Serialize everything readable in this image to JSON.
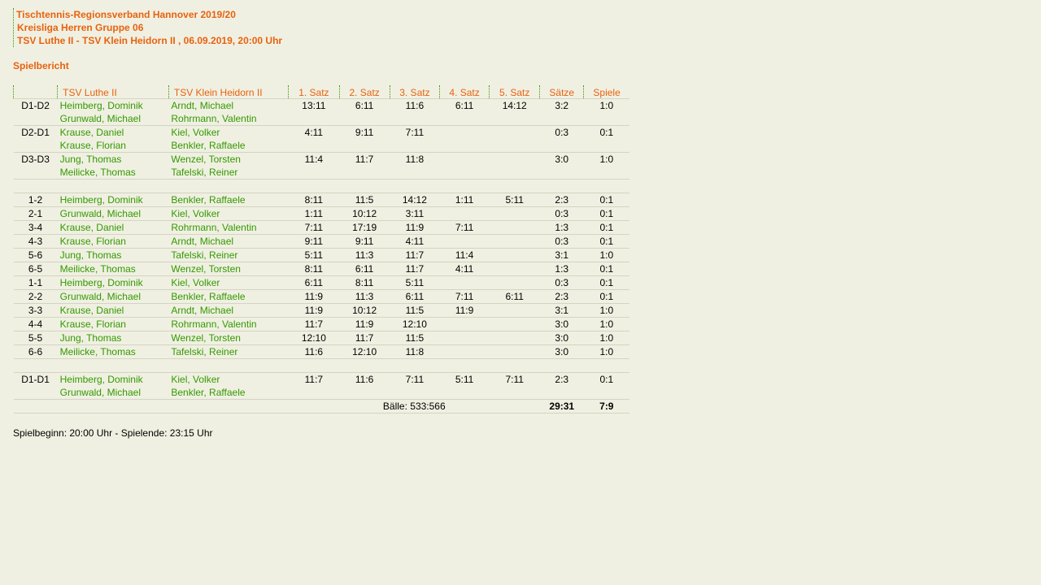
{
  "header": {
    "line1": "Tischtennis-Regionsverband Hannover 2019/20",
    "line2": "Kreisliga Herren Gruppe 06",
    "line3": "TSV Luthe II - TSV Klein Heidorn II , 06.09.2019, 20:00 Uhr"
  },
  "section_title": "Spielbericht",
  "columns": [
    "",
    "TSV Luthe II",
    "TSV Klein Heidorn II",
    "1. Satz",
    "2. Satz",
    "3. Satz",
    "4. Satz",
    "5. Satz",
    "Sätze",
    "Spiele"
  ],
  "groups": [
    [
      {
        "pos": "D1-D2",
        "home": [
          "Heimberg, Dominik",
          "Grunwald, Michael"
        ],
        "away": [
          "Arndt, Michael",
          "Rohrmann, Valentin"
        ],
        "sets": [
          "13:11",
          "6:11",
          "11:6",
          "6:11",
          "14:12"
        ],
        "saetze": "3:2",
        "spiele": "1:0"
      },
      {
        "pos": "D2-D1",
        "home": [
          "Krause, Daniel",
          "Krause, Florian"
        ],
        "away": [
          "Kiel, Volker",
          "Benkler, Raffaele"
        ],
        "sets": [
          "4:11",
          "9:11",
          "7:11",
          "",
          ""
        ],
        "saetze": "0:3",
        "spiele": "0:1"
      },
      {
        "pos": "D3-D3",
        "home": [
          "Jung, Thomas",
          "Meilicke, Thomas"
        ],
        "away": [
          "Wenzel, Torsten",
          "Tafelski, Reiner"
        ],
        "sets": [
          "11:4",
          "11:7",
          "11:8",
          "",
          ""
        ],
        "saetze": "3:0",
        "spiele": "1:0"
      }
    ],
    [
      {
        "pos": "1-2",
        "home": [
          "Heimberg, Dominik"
        ],
        "away": [
          "Benkler, Raffaele"
        ],
        "sets": [
          "8:11",
          "11:5",
          "14:12",
          "1:11",
          "5:11"
        ],
        "saetze": "2:3",
        "spiele": "0:1"
      },
      {
        "pos": "2-1",
        "home": [
          "Grunwald, Michael"
        ],
        "away": [
          "Kiel, Volker"
        ],
        "sets": [
          "1:11",
          "10:12",
          "3:11",
          "",
          ""
        ],
        "saetze": "0:3",
        "spiele": "0:1"
      },
      {
        "pos": "3-4",
        "home": [
          "Krause, Daniel"
        ],
        "away": [
          "Rohrmann, Valentin"
        ],
        "sets": [
          "7:11",
          "17:19",
          "11:9",
          "7:11",
          ""
        ],
        "saetze": "1:3",
        "spiele": "0:1"
      },
      {
        "pos": "4-3",
        "home": [
          "Krause, Florian"
        ],
        "away": [
          "Arndt, Michael"
        ],
        "sets": [
          "9:11",
          "9:11",
          "4:11",
          "",
          ""
        ],
        "saetze": "0:3",
        "spiele": "0:1"
      },
      {
        "pos": "5-6",
        "home": [
          "Jung, Thomas"
        ],
        "away": [
          "Tafelski, Reiner"
        ],
        "sets": [
          "5:11",
          "11:3",
          "11:7",
          "11:4",
          ""
        ],
        "saetze": "3:1",
        "spiele": "1:0"
      },
      {
        "pos": "6-5",
        "home": [
          "Meilicke, Thomas"
        ],
        "away": [
          "Wenzel, Torsten"
        ],
        "sets": [
          "8:11",
          "6:11",
          "11:7",
          "4:11",
          ""
        ],
        "saetze": "1:3",
        "spiele": "0:1"
      },
      {
        "pos": "1-1",
        "home": [
          "Heimberg, Dominik"
        ],
        "away": [
          "Kiel, Volker"
        ],
        "sets": [
          "6:11",
          "8:11",
          "5:11",
          "",
          ""
        ],
        "saetze": "0:3",
        "spiele": "0:1"
      },
      {
        "pos": "2-2",
        "home": [
          "Grunwald, Michael"
        ],
        "away": [
          "Benkler, Raffaele"
        ],
        "sets": [
          "11:9",
          "11:3",
          "6:11",
          "7:11",
          "6:11"
        ],
        "saetze": "2:3",
        "spiele": "0:1"
      },
      {
        "pos": "3-3",
        "home": [
          "Krause, Daniel"
        ],
        "away": [
          "Arndt, Michael"
        ],
        "sets": [
          "11:9",
          "10:12",
          "11:5",
          "11:9",
          ""
        ],
        "saetze": "3:1",
        "spiele": "1:0"
      },
      {
        "pos": "4-4",
        "home": [
          "Krause, Florian"
        ],
        "away": [
          "Rohrmann, Valentin"
        ],
        "sets": [
          "11:7",
          "11:9",
          "12:10",
          "",
          ""
        ],
        "saetze": "3:0",
        "spiele": "1:0"
      },
      {
        "pos": "5-5",
        "home": [
          "Jung, Thomas"
        ],
        "away": [
          "Wenzel, Torsten"
        ],
        "sets": [
          "12:10",
          "11:7",
          "11:5",
          "",
          ""
        ],
        "saetze": "3:0",
        "spiele": "1:0"
      },
      {
        "pos": "6-6",
        "home": [
          "Meilicke, Thomas"
        ],
        "away": [
          "Tafelski, Reiner"
        ],
        "sets": [
          "11:6",
          "12:10",
          "11:8",
          "",
          ""
        ],
        "saetze": "3:0",
        "spiele": "1:0"
      }
    ],
    [
      {
        "pos": "D1-D1",
        "home": [
          "Heimberg, Dominik",
          "Grunwald, Michael"
        ],
        "away": [
          "Kiel, Volker",
          "Benkler, Raffaele"
        ],
        "sets": [
          "11:7",
          "11:6",
          "7:11",
          "5:11",
          "7:11"
        ],
        "saetze": "2:3",
        "spiele": "0:1"
      }
    ]
  ],
  "totals": {
    "baelle": "Bälle: 533:566",
    "saetze": "29:31",
    "spiele": "7:9"
  },
  "footer": "Spielbeginn: 20:00 Uhr - Spielende: 23:15 Uhr",
  "colors": {
    "accent": "#e8620f",
    "player": "#339900",
    "background": "#f0f0e2"
  }
}
